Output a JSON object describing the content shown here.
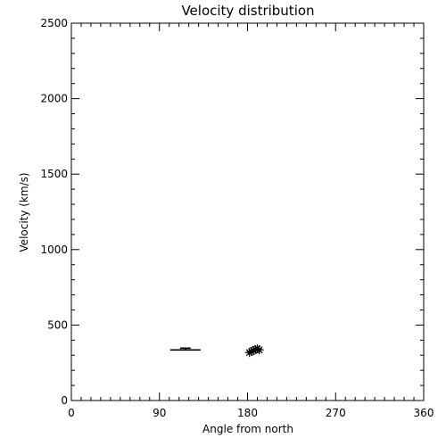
{
  "chart_data": {
    "type": "scatter",
    "title": "Velocity distribution",
    "xlabel": "Angle from north",
    "ylabel": "Velocity (km/s)",
    "xlim": [
      0,
      360
    ],
    "ylim": [
      0,
      2500
    ],
    "x_ticks": [
      0,
      90,
      180,
      270,
      360
    ],
    "x_tick_labels": [
      "0",
      "90",
      "180",
      "270",
      "360"
    ],
    "x_minor_step": 10,
    "y_ticks": [
      0,
      500,
      1000,
      1500,
      2000,
      2500
    ],
    "y_tick_labels": [
      "0",
      "500",
      "1000",
      "1500",
      "2000",
      "2500"
    ],
    "y_minor_step": 100,
    "grid": false,
    "error_bar": {
      "x_min": 101,
      "x_max": 132,
      "y": 335,
      "y_err": 12
    },
    "points": [
      {
        "x": 182,
        "y": 318
      },
      {
        "x": 184,
        "y": 325
      },
      {
        "x": 186,
        "y": 332
      },
      {
        "x": 188,
        "y": 338
      },
      {
        "x": 190,
        "y": 342
      },
      {
        "x": 192,
        "y": 336
      }
    ]
  }
}
